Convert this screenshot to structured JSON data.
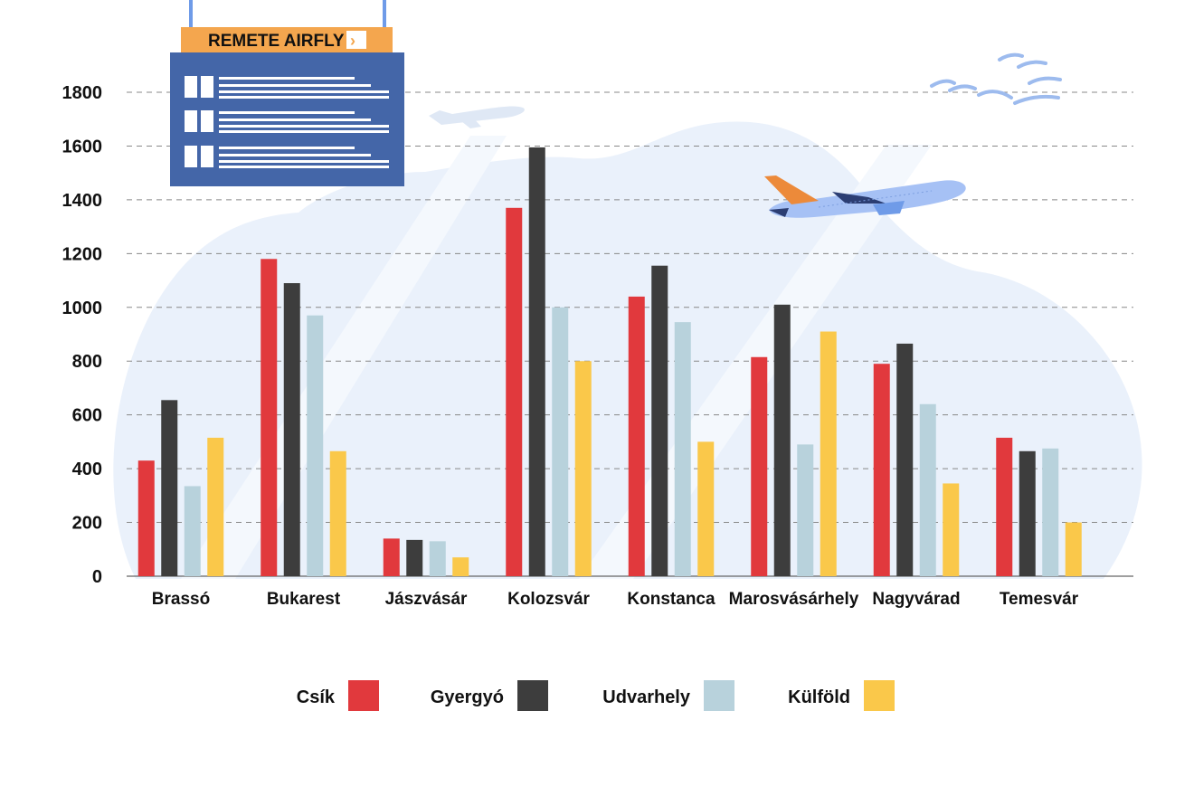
{
  "sign": {
    "text": "REMETE AIRFLY",
    "arrow": "›"
  },
  "colors": {
    "Csík": "#e1393d",
    "Gyergyó": "#3d3d3d",
    "Udvarhely": "#b8d2dc",
    "Külföld": "#fac84a",
    "grid": "#888888",
    "sign_board": "#4466a8",
    "sign_header": "#f4a64e",
    "cloud": "#eaf1fb",
    "plane_body": "#a6c1f5",
    "plane_tail": "#ec8a3a"
  },
  "icons": [
    "flight-board-sign",
    "airplane-icon",
    "airplane-silhouette-icon",
    "birds-icon",
    "cloud-background"
  ],
  "chart_data": {
    "type": "bar",
    "title": "",
    "xlabel": "",
    "ylabel": "",
    "ylim": [
      0,
      1800
    ],
    "yticks": [
      "0",
      "200",
      "400",
      "600",
      "800",
      "1000",
      "1200",
      "1400",
      "1600",
      "1800"
    ],
    "grid": true,
    "legend_position": "bottom",
    "categories": [
      "Brassó",
      "Bukarest",
      "Jászvásár",
      "Kolozsvár",
      "Konstanca",
      "Marosvásárhely",
      "Nagyvárad",
      "Temesvár"
    ],
    "series": [
      {
        "name": "Csík",
        "values": [
          430,
          1180,
          140,
          1370,
          1040,
          815,
          790,
          515
        ]
      },
      {
        "name": "Gyergyó",
        "values": [
          655,
          1090,
          135,
          1595,
          1155,
          1010,
          865,
          465
        ]
      },
      {
        "name": "Udvarhely",
        "values": [
          335,
          970,
          130,
          1000,
          945,
          490,
          640,
          475
        ]
      },
      {
        "name": "Külföld",
        "values": [
          515,
          465,
          70,
          800,
          500,
          910,
          345,
          200
        ]
      }
    ]
  }
}
